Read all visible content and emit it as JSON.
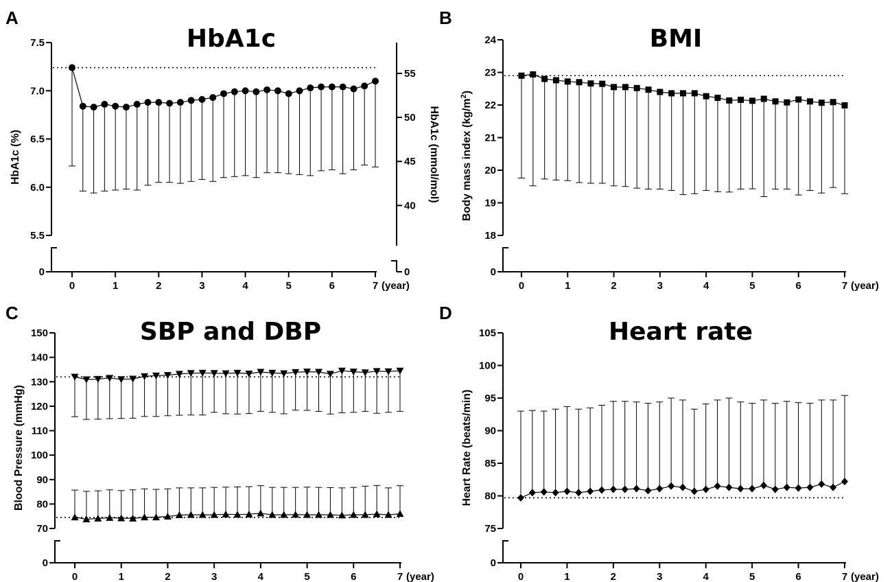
{
  "chart_data": [
    {
      "panel": "A",
      "type": "line",
      "title": "HbA1c",
      "xlabel": "",
      "ylabel": "HbA1c (%)",
      "y2label": "HbA1c (mmol/mol)",
      "x_unit": "(year)",
      "x_ticks": [
        "0",
        "1",
        "2",
        "3",
        "4",
        "5",
        "6",
        "7"
      ],
      "y_ticks": [
        "5.5",
        "6.0",
        "6.5",
        "7.0",
        "7.5"
      ],
      "y_break_tick": "0",
      "y2_ticks": [
        "40",
        "45",
        "50",
        "55"
      ],
      "y2_break_tick": "0",
      "xlim": [
        0,
        7
      ],
      "ylim": [
        5.5,
        7.5
      ],
      "y2lim": [
        36.6,
        58.5
      ],
      "marker": "circle",
      "reference_line": 7.24,
      "x": [
        0,
        0.25,
        0.5,
        0.75,
        1,
        1.25,
        1.5,
        1.75,
        2,
        2.25,
        2.5,
        2.75,
        3,
        3.25,
        3.5,
        3.75,
        4,
        4.25,
        4.5,
        4.75,
        5,
        5.25,
        5.5,
        5.75,
        6,
        6.25,
        6.5,
        6.75,
        7
      ],
      "values": [
        7.24,
        6.84,
        6.83,
        6.86,
        6.84,
        6.83,
        6.86,
        6.88,
        6.88,
        6.87,
        6.88,
        6.9,
        6.91,
        6.93,
        6.97,
        6.99,
        7.0,
        6.99,
        7.01,
        7.0,
        6.97,
        7.0,
        7.03,
        7.04,
        7.04,
        7.04,
        7.02,
        7.05,
        7.1
      ],
      "error_lower": [
        6.22,
        5.96,
        5.94,
        5.96,
        5.97,
        5.98,
        5.97,
        6.02,
        6.05,
        6.05,
        6.04,
        6.06,
        6.08,
        6.06,
        6.1,
        6.11,
        6.12,
        6.1,
        6.15,
        6.15,
        6.14,
        6.13,
        6.12,
        6.17,
        6.18,
        6.14,
        6.18,
        6.23,
        6.21
      ]
    },
    {
      "panel": "B",
      "type": "line",
      "title": "BMI",
      "xlabel": "",
      "ylabel": "Body mass index (kg/m",
      "ylabel_sup": "2",
      "ylabel_end": ")",
      "x_unit": "(year)",
      "x_ticks": [
        "0",
        "1",
        "2",
        "3",
        "4",
        "5",
        "6",
        "7"
      ],
      "y_ticks": [
        "18",
        "19",
        "20",
        "21",
        "22",
        "23",
        "24"
      ],
      "y_break_tick": "0",
      "xlim": [
        0,
        7
      ],
      "ylim": [
        18,
        24
      ],
      "marker": "square",
      "reference_line": 22.9,
      "x": [
        0,
        0.25,
        0.5,
        0.75,
        1,
        1.25,
        1.5,
        1.75,
        2,
        2.25,
        2.5,
        2.75,
        3,
        3.25,
        3.5,
        3.75,
        4,
        4.25,
        4.5,
        4.75,
        5,
        5.25,
        5.5,
        5.75,
        6,
        6.25,
        6.5,
        6.75,
        7
      ],
      "values": [
        22.9,
        22.94,
        22.8,
        22.76,
        22.72,
        22.7,
        22.66,
        22.65,
        22.55,
        22.55,
        22.52,
        22.47,
        22.4,
        22.36,
        22.36,
        22.36,
        22.27,
        22.22,
        22.14,
        22.16,
        22.13,
        22.19,
        22.11,
        22.08,
        22.17,
        22.11,
        22.07,
        22.09,
        21.99
      ],
      "error_lower": [
        19.76,
        19.52,
        19.73,
        19.7,
        19.68,
        19.62,
        19.6,
        19.6,
        19.52,
        19.5,
        19.45,
        19.42,
        19.42,
        19.38,
        19.25,
        19.28,
        19.38,
        19.34,
        19.33,
        19.42,
        19.43,
        19.19,
        19.42,
        19.42,
        19.24,
        19.38,
        19.3,
        19.47,
        19.28
      ]
    },
    {
      "panel": "C",
      "type": "line",
      "title": "SBP and DBP",
      "xlabel": "",
      "ylabel": "Blood Pressure (mmHg)",
      "x_unit": "(year)",
      "x_ticks": [
        "0",
        "1",
        "2",
        "3",
        "4",
        "5",
        "6",
        "7"
      ],
      "y_ticks": [
        "70",
        "80",
        "90",
        "100",
        "110",
        "120",
        "130",
        "140",
        "150"
      ],
      "y_break_tick": "0",
      "xlim": [
        0,
        7
      ],
      "ylim": [
        70,
        150
      ],
      "x": [
        0,
        0.25,
        0.5,
        0.75,
        1,
        1.25,
        1.5,
        1.75,
        2,
        2.25,
        2.5,
        2.75,
        3,
        3.25,
        3.5,
        3.75,
        4,
        4.25,
        4.5,
        4.75,
        5,
        5.25,
        5.5,
        5.75,
        6,
        6.25,
        6.5,
        6.75,
        7
      ],
      "series": [
        {
          "marker": "triangle-down",
          "reference_line": 132,
          "error_direction": "down",
          "values": [
            132.0,
            130.9,
            131.1,
            131.5,
            131.0,
            131.2,
            132.2,
            132.5,
            132.7,
            133.2,
            133.5,
            133.6,
            133.5,
            133.4,
            133.6,
            133.3,
            134.0,
            133.6,
            133.4,
            133.9,
            134.1,
            134.0,
            133.2,
            134.5,
            134.1,
            133.8,
            134.3,
            134.2,
            134.5
          ],
          "error_bound": [
            115.7,
            114.6,
            114.7,
            114.9,
            115.0,
            115.1,
            115.8,
            115.8,
            116.1,
            116.3,
            116.4,
            116.4,
            117.5,
            116.9,
            116.8,
            117.0,
            117.9,
            117.5,
            116.9,
            118.4,
            118.3,
            117.9,
            116.8,
            117.3,
            117.5,
            117.9,
            117.1,
            117.5,
            117.9
          ]
        },
        {
          "marker": "triangle-up",
          "reference_line": 74.5,
          "error_direction": "up",
          "values": [
            74.6,
            73.8,
            74.1,
            74.4,
            74.2,
            74.1,
            74.6,
            74.6,
            74.9,
            75.5,
            75.6,
            75.6,
            75.6,
            75.8,
            75.7,
            75.8,
            76.2,
            75.6,
            75.6,
            75.7,
            75.6,
            75.6,
            75.6,
            75.4,
            75.6,
            75.6,
            75.9,
            75.6,
            76.0
          ],
          "error_bound": [
            85.7,
            85.2,
            85.4,
            85.8,
            85.5,
            85.8,
            86.2,
            86.0,
            86.2,
            86.6,
            86.6,
            86.6,
            86.8,
            86.9,
            87.0,
            87.1,
            87.5,
            86.8,
            86.8,
            86.8,
            86.9,
            86.8,
            86.7,
            86.6,
            86.8,
            87.3,
            87.6,
            86.6,
            87.5
          ]
        }
      ]
    },
    {
      "panel": "D",
      "type": "line",
      "title": "Heart rate",
      "xlabel": "",
      "ylabel": "Heart Rate (beats/min)",
      "x_unit": "(year)",
      "x_ticks": [
        "0",
        "1",
        "2",
        "3",
        "4",
        "5",
        "6",
        "7"
      ],
      "y_ticks": [
        "75",
        "80",
        "85",
        "90",
        "95",
        "100",
        "105"
      ],
      "y_break_tick": "0",
      "xlim": [
        0,
        7
      ],
      "ylim": [
        75,
        105
      ],
      "marker": "diamond",
      "reference_line": 79.7,
      "x": [
        0,
        0.25,
        0.5,
        0.75,
        1,
        1.25,
        1.5,
        1.75,
        2,
        2.25,
        2.5,
        2.75,
        3,
        3.25,
        3.5,
        3.75,
        4,
        4.25,
        4.5,
        4.75,
        5,
        5.25,
        5.5,
        5.75,
        6,
        6.25,
        6.5,
        6.75,
        7
      ],
      "values": [
        79.7,
        80.5,
        80.6,
        80.5,
        80.7,
        80.5,
        80.7,
        80.9,
        81.0,
        81.0,
        81.1,
        80.8,
        81.1,
        81.5,
        81.3,
        80.7,
        81.0,
        81.5,
        81.3,
        81.1,
        81.1,
        81.6,
        81.0,
        81.3,
        81.2,
        81.3,
        81.8,
        81.3,
        82.2
      ],
      "error_upper": [
        93.0,
        93.1,
        93.0,
        93.3,
        93.7,
        93.3,
        93.5,
        93.9,
        94.5,
        94.5,
        94.4,
        94.2,
        94.4,
        95.0,
        94.7,
        93.3,
        94.1,
        94.7,
        95.0,
        94.4,
        94.2,
        94.7,
        94.2,
        94.5,
        94.3,
        94.2,
        94.7,
        94.7,
        95.4
      ]
    }
  ]
}
